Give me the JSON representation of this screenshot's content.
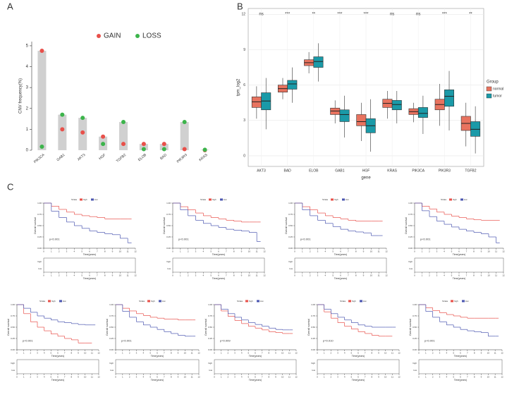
{
  "panel_labels": [
    "A",
    "B",
    "C"
  ],
  "chart_data": [
    {
      "type": "dot",
      "ylabel": "CNV frequency(%)",
      "categories": [
        "PIK3CA",
        "GAB1",
        "AKT3",
        "HGF",
        "TGFB2",
        "ELOB",
        "BAD",
        "PIK3R3",
        "KRAS"
      ],
      "series": [
        {
          "name": "GAIN",
          "color": "#e8504a",
          "values": [
            4.76,
            1.0,
            0.85,
            0.65,
            0.3,
            0.3,
            0.3,
            0.05,
            0
          ]
        },
        {
          "name": "LOSS",
          "color": "#3cb44b",
          "values": [
            0.17,
            1.7,
            1.55,
            0.3,
            1.35,
            0.05,
            0.05,
            1.35,
            0.02
          ]
        }
      ],
      "bar_color": "#d0d0d0",
      "ylim": [
        0,
        5.2
      ],
      "yticks": [
        0,
        1,
        2,
        3,
        4,
        5
      ]
    },
    {
      "type": "box",
      "xlabel": "gene",
      "ylabel": "tpm_log2",
      "legend_title": "Group",
      "categories": [
        "AKT3",
        "BAD",
        "ELOB",
        "GAB1",
        "HGF",
        "KRAS",
        "PIK3CA",
        "PIK3R3",
        "TGFB2"
      ],
      "significance": [
        "ns",
        "***",
        "**",
        "***",
        "***",
        "ns",
        "ns",
        "***",
        "**"
      ],
      "series": [
        {
          "name": "normal",
          "color": "#e8735f",
          "whislo": [
            3.15,
            4.8,
            7.0,
            2.75,
            1.25,
            3.15,
            2.85,
            2.55,
            0.8
          ],
          "q1": [
            4.1,
            5.4,
            7.65,
            3.5,
            2.55,
            4.1,
            3.5,
            3.9,
            2.15
          ],
          "median": [
            4.58,
            5.7,
            7.9,
            3.8,
            2.9,
            4.45,
            3.75,
            4.35,
            2.75
          ],
          "q3": [
            5.0,
            6.0,
            8.15,
            4.05,
            3.5,
            4.8,
            4.0,
            4.8,
            3.35
          ],
          "whishi": [
            5.9,
            6.6,
            8.8,
            4.7,
            4.5,
            5.5,
            4.5,
            6.1,
            4.5
          ]
        },
        {
          "name": "tumor",
          "color": "#1a9aa8",
          "whislo": [
            2.25,
            4.5,
            6.3,
            1.55,
            0.35,
            2.75,
            1.85,
            2.15,
            0.2
          ],
          "q1": [
            3.9,
            5.65,
            7.5,
            2.9,
            1.95,
            3.9,
            3.25,
            4.2,
            1.65
          ],
          "median": [
            4.65,
            6.1,
            8.0,
            3.5,
            2.55,
            4.35,
            3.6,
            5.05,
            2.25
          ],
          "q3": [
            5.35,
            6.4,
            8.4,
            3.9,
            3.15,
            4.7,
            4.1,
            5.6,
            2.9
          ],
          "whishi": [
            6.6,
            7.5,
            9.55,
            5.1,
            4.8,
            5.5,
            5.1,
            7.2,
            4.2
          ]
        }
      ],
      "ylim": [
        -0.9,
        12.5
      ],
      "yticks": [
        0,
        3,
        6,
        9,
        12
      ],
      "grid": true
    },
    {
      "type": "km",
      "pvalue": "p<0.001",
      "xlabel": "Time(years)",
      "ylabel": "Overall survival",
      "legend_title": "Strata",
      "x": [
        0,
        1,
        2,
        3,
        4,
        5,
        6,
        7,
        8,
        9,
        10,
        11
      ],
      "series": [
        {
          "name": "high",
          "color": "#e8504a",
          "values": [
            1,
            0.93,
            0.86,
            0.8,
            0.75,
            0.72,
            0.7,
            0.68,
            0.65,
            0.65,
            0.65,
            0.65
          ]
        },
        {
          "name": "low",
          "color": "#4b56b0",
          "values": [
            1,
            0.82,
            0.68,
            0.58,
            0.5,
            0.44,
            0.38,
            0.35,
            0.32,
            0.3,
            0.22,
            0.12
          ]
        }
      ],
      "xlim": [
        0,
        12
      ],
      "xticks": [
        0,
        1,
        2,
        3,
        4,
        5,
        6,
        7,
        8,
        9,
        10,
        11,
        12
      ],
      "ylim": [
        0,
        1
      ],
      "yticks": [
        {
          "value": 0,
          "label": "0.00"
        },
        {
          "value": 0.25,
          "label": "0.25"
        },
        {
          "value": 0.5,
          "label": "0.50"
        },
        {
          "value": 0.75,
          "label": "0.75"
        },
        {
          "value": 1,
          "label": "1.00"
        }
      ]
    },
    {
      "type": "km",
      "pvalue": "p<0.001",
      "xlabel": "Time(years)",
      "ylabel": "Overall survival",
      "legend_title": "Strata",
      "x": [
        0,
        1,
        2,
        3,
        4,
        5,
        6,
        7,
        8,
        9,
        10,
        11
      ],
      "series": [
        {
          "name": "high",
          "color": "#e8504a",
          "values": [
            1,
            0.92,
            0.85,
            0.78,
            0.72,
            0.68,
            0.65,
            0.62,
            0.6,
            0.58,
            0.58,
            0.58
          ]
        },
        {
          "name": "low",
          "color": "#4b56b0",
          "values": [
            1,
            0.85,
            0.72,
            0.62,
            0.55,
            0.5,
            0.46,
            0.42,
            0.4,
            0.38,
            0.35,
            0.15
          ]
        }
      ],
      "xlim": [
        0,
        12
      ],
      "xticks": [
        0,
        1,
        2,
        3,
        4,
        5,
        6,
        7,
        8,
        9,
        10,
        11,
        12
      ],
      "ylim": [
        0,
        1
      ],
      "yticks": [
        {
          "value": 0,
          "label": "0.00"
        },
        {
          "value": 0.25,
          "label": "0.25"
        },
        {
          "value": 0.5,
          "label": "0.50"
        },
        {
          "value": 0.75,
          "label": "0.75"
        },
        {
          "value": 1,
          "label": "1.00"
        }
      ]
    },
    {
      "type": "km",
      "pvalue": "p<0.001",
      "xlabel": "Time(years)",
      "ylabel": "Overall survival",
      "legend_title": "Strata",
      "x": [
        0,
        1,
        2,
        3,
        4,
        5,
        6,
        7,
        8,
        9,
        10,
        11
      ],
      "series": [
        {
          "name": "high",
          "color": "#e8504a",
          "values": [
            1,
            0.92,
            0.85,
            0.78,
            0.72,
            0.68,
            0.65,
            0.62,
            0.6,
            0.6,
            0.6,
            0.6
          ]
        },
        {
          "name": "low",
          "color": "#4b56b0",
          "values": [
            1,
            0.85,
            0.72,
            0.62,
            0.55,
            0.48,
            0.42,
            0.38,
            0.36,
            0.34,
            0.28,
            0.28
          ]
        }
      ],
      "xlim": [
        0,
        12
      ],
      "xticks": [
        0,
        1,
        2,
        3,
        4,
        5,
        6,
        7,
        8,
        9,
        10,
        11,
        12
      ],
      "ylim": [
        0,
        1
      ],
      "yticks": [
        {
          "value": 0,
          "label": "0.00"
        },
        {
          "value": 0.25,
          "label": "0.25"
        },
        {
          "value": 0.5,
          "label": "0.50"
        },
        {
          "value": 0.75,
          "label": "0.75"
        },
        {
          "value": 1,
          "label": "1.00"
        }
      ]
    },
    {
      "type": "km",
      "pvalue": "p<0.001",
      "xlabel": "Time(years)",
      "ylabel": "Overall survival",
      "legend_title": "Strata",
      "x": [
        0,
        1,
        2,
        3,
        4,
        5,
        6,
        7,
        8,
        9,
        10,
        11
      ],
      "series": [
        {
          "name": "high",
          "color": "#e8504a",
          "values": [
            1,
            0.93,
            0.87,
            0.8,
            0.75,
            0.71,
            0.68,
            0.65,
            0.63,
            0.62,
            0.62,
            0.62
          ]
        },
        {
          "name": "low",
          "color": "#4b56b0",
          "values": [
            1,
            0.83,
            0.7,
            0.6,
            0.53,
            0.47,
            0.42,
            0.38,
            0.35,
            0.32,
            0.25,
            0.12
          ]
        }
      ],
      "xlim": [
        0,
        12
      ],
      "xticks": [
        0,
        1,
        2,
        3,
        4,
        5,
        6,
        7,
        8,
        9,
        10,
        11,
        12
      ],
      "ylim": [
        0,
        1
      ],
      "yticks": [
        {
          "value": 0,
          "label": "0.00"
        },
        {
          "value": 0.25,
          "label": "0.25"
        },
        {
          "value": 0.5,
          "label": "0.50"
        },
        {
          "value": 0.75,
          "label": "0.75"
        },
        {
          "value": 1,
          "label": "1.00"
        }
      ]
    },
    {
      "type": "km",
      "pvalue": "p<0.001",
      "xlabel": "Time(years)",
      "ylabel": "Overall survival",
      "legend_title": "Strata",
      "x": [
        0,
        1,
        2,
        3,
        4,
        5,
        6,
        7,
        8,
        9,
        10,
        11
      ],
      "series": [
        {
          "name": "high",
          "color": "#e8504a",
          "values": [
            1,
            0.8,
            0.62,
            0.5,
            0.42,
            0.35,
            0.3,
            0.25,
            0.22,
            0.15,
            0.15,
            null
          ]
        },
        {
          "name": "low",
          "color": "#4b56b0",
          "values": [
            1,
            0.92,
            0.83,
            0.75,
            0.7,
            0.66,
            0.62,
            0.6,
            0.58,
            0.56,
            0.55,
            0.55
          ]
        }
      ],
      "xlim": [
        0,
        12
      ],
      "xticks": [
        0,
        1,
        2,
        3,
        4,
        5,
        6,
        7,
        8,
        9,
        10,
        11,
        12
      ],
      "ylim": [
        0,
        1
      ],
      "yticks": [
        {
          "value": 0,
          "label": "0.00"
        },
        {
          "value": 0.25,
          "label": "0.25"
        },
        {
          "value": 0.5,
          "label": "0.50"
        },
        {
          "value": 0.75,
          "label": "0.75"
        },
        {
          "value": 1,
          "label": "1.00"
        }
      ]
    },
    {
      "type": "km",
      "pvalue": "p<0.001",
      "xlabel": "Time(years)",
      "ylabel": "Overall survival",
      "legend_title": "Strata",
      "x": [
        0,
        1,
        2,
        3,
        4,
        5,
        6,
        7,
        8,
        9,
        10,
        11
      ],
      "series": [
        {
          "name": "high",
          "color": "#e8504a",
          "values": [
            1,
            0.92,
            0.86,
            0.8,
            0.76,
            0.72,
            0.7,
            0.68,
            0.68,
            0.66,
            0.66,
            0.66
          ]
        },
        {
          "name": "low",
          "color": "#4b56b0",
          "values": [
            1,
            0.85,
            0.72,
            0.62,
            0.55,
            0.5,
            0.45,
            0.4,
            0.36,
            0.32,
            0.3,
            0.3
          ]
        }
      ],
      "xlim": [
        0,
        12
      ],
      "xticks": [
        0,
        1,
        2,
        3,
        4,
        5,
        6,
        7,
        8,
        9,
        10,
        11,
        12
      ],
      "ylim": [
        0,
        1
      ],
      "yticks": [
        {
          "value": 0,
          "label": "0.00"
        },
        {
          "value": 0.25,
          "label": "0.25"
        },
        {
          "value": 0.5,
          "label": "0.50"
        },
        {
          "value": 0.75,
          "label": "0.75"
        },
        {
          "value": 1,
          "label": "1.00"
        }
      ]
    },
    {
      "type": "km",
      "pvalue": "p=0.009",
      "xlabel": "Time(years)",
      "ylabel": "Overall survival",
      "legend_title": "Strata",
      "x": [
        0,
        1,
        2,
        3,
        4,
        5,
        6,
        7,
        8,
        9,
        10,
        11
      ],
      "series": [
        {
          "name": "high",
          "color": "#e8504a",
          "values": [
            1,
            0.86,
            0.74,
            0.65,
            0.58,
            0.52,
            0.48,
            0.44,
            0.4,
            0.38,
            0.36,
            0.36
          ]
        },
        {
          "name": "low",
          "color": "#4b56b0",
          "values": [
            1,
            0.9,
            0.8,
            0.72,
            0.66,
            0.6,
            0.56,
            0.52,
            0.48,
            0.45,
            0.44,
            0.44
          ]
        }
      ],
      "xlim": [
        0,
        12
      ],
      "xticks": [
        0,
        1,
        2,
        3,
        4,
        5,
        6,
        7,
        8,
        9,
        10,
        11,
        12
      ],
      "ylim": [
        0,
        1
      ],
      "yticks": [
        {
          "value": 0,
          "label": "0.00"
        },
        {
          "value": 0.25,
          "label": "0.25"
        },
        {
          "value": 0.5,
          "label": "0.50"
        },
        {
          "value": 0.75,
          "label": "0.75"
        },
        {
          "value": 1,
          "label": "1.00"
        }
      ]
    },
    {
      "type": "km",
      "pvalue": "p=0.010",
      "xlabel": "Time(years)",
      "ylabel": "Overall survival",
      "legend_title": "Strata",
      "x": [
        0,
        1,
        2,
        3,
        4,
        5,
        6,
        7,
        8,
        9,
        10,
        11
      ],
      "series": [
        {
          "name": "high",
          "color": "#e8504a",
          "values": [
            1,
            0.84,
            0.7,
            0.6,
            0.52,
            0.46,
            0.4,
            0.36,
            0.32,
            0.3,
            0.3,
            null
          ]
        },
        {
          "name": "low",
          "color": "#4b56b0",
          "values": [
            1,
            0.9,
            0.8,
            0.72,
            0.66,
            0.6,
            0.55,
            0.52,
            0.5,
            0.5,
            0.5,
            0.5
          ]
        }
      ],
      "xlim": [
        0,
        12
      ],
      "xticks": [
        0,
        1,
        2,
        3,
        4,
        5,
        6,
        7,
        8,
        9,
        10,
        11,
        12
      ],
      "ylim": [
        0,
        1
      ],
      "yticks": [
        {
          "value": 0,
          "label": "0.00"
        },
        {
          "value": 0.25,
          "label": "0.25"
        },
        {
          "value": 0.5,
          "label": "0.50"
        },
        {
          "value": 0.75,
          "label": "0.75"
        },
        {
          "value": 1,
          "label": "1.00"
        }
      ]
    },
    {
      "type": "km",
      "pvalue": "p<0.001",
      "xlabel": "Time(years)",
      "ylabel": "Overall survival",
      "legend_title": "Strata",
      "x": [
        0,
        1,
        2,
        3,
        4,
        5,
        6,
        7,
        8,
        9,
        10,
        11
      ],
      "series": [
        {
          "name": "high",
          "color": "#e8504a",
          "values": [
            1,
            0.93,
            0.87,
            0.82,
            0.78,
            0.75,
            0.72,
            0.7,
            0.7,
            0.7,
            0.7,
            0.7
          ]
        },
        {
          "name": "low",
          "color": "#4b56b0",
          "values": [
            1,
            0.85,
            0.72,
            0.62,
            0.55,
            0.5,
            0.45,
            0.42,
            0.4,
            0.38,
            0.3,
            0.3
          ]
        }
      ],
      "xlim": [
        0,
        12
      ],
      "xticks": [
        0,
        1,
        2,
        3,
        4,
        5,
        6,
        7,
        8,
        9,
        10,
        11,
        12
      ],
      "ylim": [
        0,
        1
      ],
      "yticks": [
        {
          "value": 0,
          "label": "0.00"
        },
        {
          "value": 0.25,
          "label": "0.25"
        },
        {
          "value": 0.5,
          "label": "0.50"
        },
        {
          "value": 0.75,
          "label": "0.75"
        },
        {
          "value": 1,
          "label": "1.00"
        }
      ]
    }
  ]
}
